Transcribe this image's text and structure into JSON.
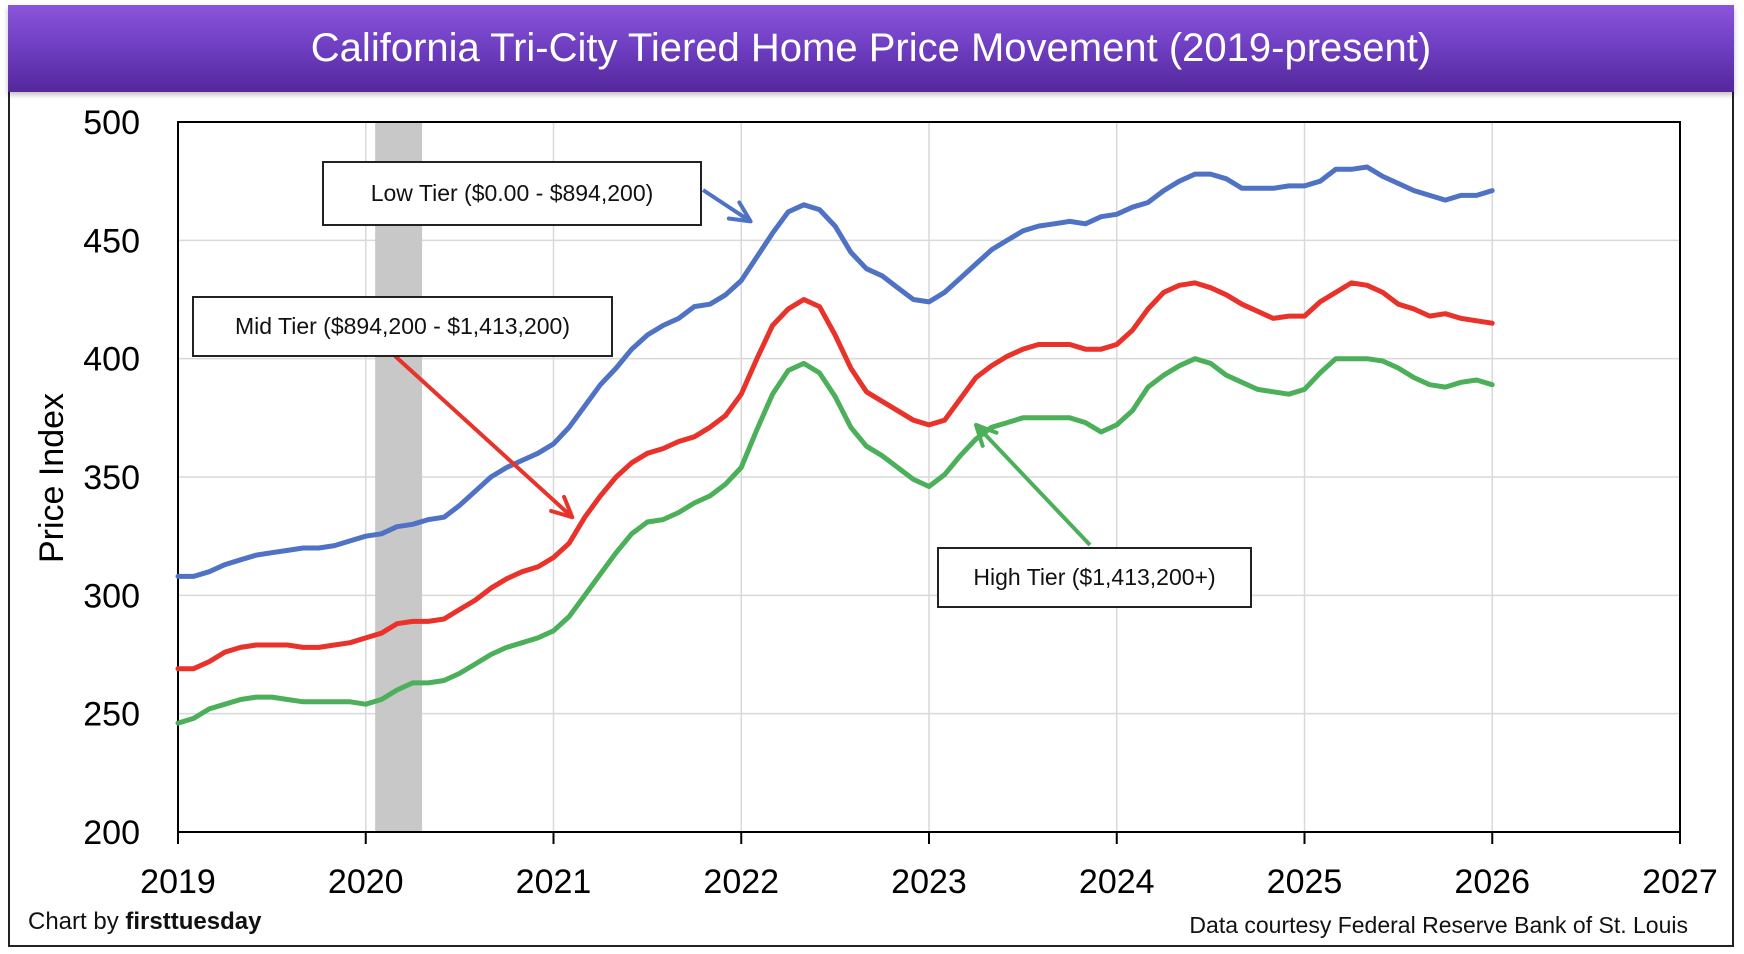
{
  "chart_data": {
    "type": "line",
    "title": "California Tri-City Tiered Home Price Movement (2019-present)",
    "xlabel": "",
    "ylabel": "Price Index",
    "xlim": [
      2019,
      2027
    ],
    "ylim": [
      200,
      500
    ],
    "x_ticks": [
      "2019",
      "2020",
      "2021",
      "2022",
      "2023",
      "2024",
      "2025",
      "2026",
      "2027"
    ],
    "y_ticks": [
      "200",
      "250",
      "300",
      "350",
      "400",
      "450",
      "500"
    ],
    "grid": true,
    "recession_band": {
      "start": 2020.05,
      "end": 2020.3,
      "color": "#c8c8c8"
    },
    "x_start": 2019.0,
    "x_step": 0.0833333,
    "series": [
      {
        "name": "Low Tier ($0.00 - $894,200)",
        "color": "#4f72c4",
        "values": [
          308,
          308,
          310,
          313,
          315,
          317,
          318,
          319,
          320,
          320,
          321,
          323,
          325,
          326,
          329,
          330,
          332,
          333,
          338,
          344,
          350,
          354,
          357,
          360,
          364,
          371,
          380,
          389,
          396,
          404,
          410,
          414,
          417,
          422,
          423,
          427,
          433,
          443,
          453,
          462,
          465,
          463,
          456,
          445,
          438,
          435,
          430,
          425,
          424,
          428,
          434,
          440,
          446,
          450,
          454,
          456,
          457,
          458,
          457,
          460,
          461,
          464,
          466,
          471,
          475,
          478,
          478,
          476,
          472,
          472,
          472,
          473,
          473,
          475,
          480,
          480,
          481,
          477,
          474,
          471,
          469,
          467,
          469,
          469,
          471
        ]
      },
      {
        "name": "Mid Tier ($894,200 - $1,413,200)",
        "color": "#e8322a",
        "values": [
          269,
          269,
          272,
          276,
          278,
          279,
          279,
          279,
          278,
          278,
          279,
          280,
          282,
          284,
          288,
          289,
          289,
          290,
          294,
          298,
          303,
          307,
          310,
          312,
          316,
          322,
          333,
          342,
          350,
          356,
          360,
          362,
          365,
          367,
          371,
          376,
          385,
          400,
          414,
          421,
          425,
          422,
          410,
          396,
          386,
          382,
          378,
          374,
          372,
          374,
          383,
          392,
          397,
          401,
          404,
          406,
          406,
          406,
          404,
          404,
          406,
          412,
          421,
          428,
          431,
          432,
          430,
          427,
          423,
          420,
          417,
          418,
          418,
          424,
          428,
          432,
          431,
          428,
          423,
          421,
          418,
          419,
          417,
          416,
          415
        ]
      },
      {
        "name": "High Tier ($1,413,200+)",
        "color": "#4caf5a",
        "values": [
          246,
          248,
          252,
          254,
          256,
          257,
          257,
          256,
          255,
          255,
          255,
          255,
          254,
          256,
          260,
          263,
          263,
          264,
          267,
          271,
          275,
          278,
          280,
          282,
          285,
          291,
          300,
          309,
          318,
          326,
          331,
          332,
          335,
          339,
          342,
          347,
          354,
          370,
          385,
          395,
          398,
          394,
          384,
          371,
          363,
          359,
          354,
          349,
          346,
          351,
          359,
          366,
          371,
          373,
          375,
          375,
          375,
          375,
          373,
          369,
          372,
          378,
          388,
          393,
          397,
          400,
          398,
          393,
          390,
          387,
          386,
          385,
          387,
          394,
          400,
          400,
          400,
          399,
          396,
          392,
          389,
          388,
          390,
          391,
          389
        ]
      }
    ],
    "annotations": [
      {
        "text": "Low Tier ($0.00 - $894,200)",
        "series": 0,
        "arrow_to": {
          "x": 2022.05,
          "y": 458
        }
      },
      {
        "text": "Mid Tier ($894,200 - $1,413,200)",
        "series": 1,
        "arrow_to": {
          "x": 2021.1,
          "y": 333
        }
      },
      {
        "text": "High Tier ($1,413,200+)",
        "series": 2,
        "arrow_to": {
          "x": 2023.25,
          "y": 372
        }
      }
    ]
  },
  "footer": {
    "credit_prefix": "Chart by ",
    "credit_brand": "firsttuesday",
    "source": "Data courtesy Federal Reserve Bank of St. Louis"
  }
}
